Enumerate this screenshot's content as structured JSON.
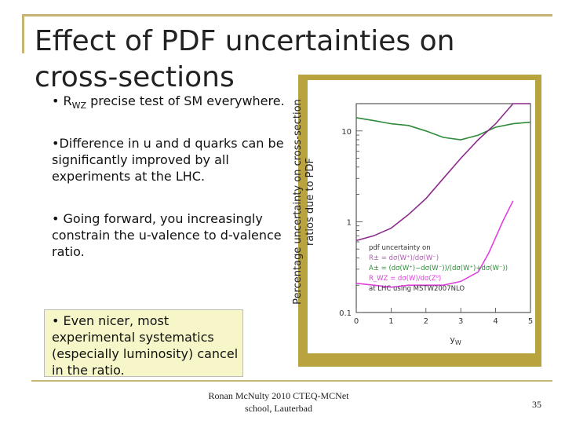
{
  "slide": {
    "title": "Effect of PDF uncertainties on cross-sections",
    "bullets": {
      "b1_pre": "• R",
      "b1_sub": "WZ",
      "b1_post": " precise test of SM everywhere.",
      "b2": "•Difference in u and d quarks can be significantly improved by all experiments at the LHC.",
      "b3": "• Going forward, you increasingly constrain the u-valence to d-valence ratio.",
      "b4": "• Even nicer, most experimental systematics (especially luminosity) cancel in the ratio."
    },
    "figure_ylabel": "Percentage uncertainty on cross-section ratios due to PDF",
    "footer": "Ronan McNulty 2010 CTEQ-MCNet school, Lauterbad",
    "page_number": "35"
  },
  "chart_data": {
    "type": "line",
    "xlabel": "y_W",
    "ylabel": "",
    "y_scale": "log",
    "xlim": [
      0,
      5
    ],
    "ylim": [
      0.1,
      20
    ],
    "x_ticks": [
      "0",
      "1",
      "2",
      "3",
      "4",
      "5"
    ],
    "y_ticks": [
      "0.1",
      "1",
      "10"
    ],
    "legend_lines": [
      "pdf uncertainty on",
      "R± = dσ(W⁺)/dσ(W⁻)",
      "A± = (dσ(W⁺)−dσ(W⁻))/(dσ(W⁺)+dσ(W⁻))",
      "R_WZ = dσ(W)/dσ(Z⁰)",
      "at LHC using MSTW2007NLO"
    ],
    "series": [
      {
        "color": "#2e8b3a",
        "x": [
          0,
          0.5,
          1,
          1.5,
          2,
          2.5,
          3,
          3.5,
          4,
          4.5,
          5
        ],
        "y": [
          14,
          13,
          12,
          11.5,
          10,
          8.5,
          8,
          9,
          11,
          12,
          12.5
        ]
      },
      {
        "color": "#8b2a8b",
        "x": [
          0,
          0.5,
          1,
          1.5,
          2,
          2.5,
          3,
          3.5,
          4,
          4.5,
          5
        ],
        "y": [
          0.62,
          0.7,
          0.85,
          1.2,
          1.8,
          3,
          5,
          8,
          12,
          20,
          25
        ]
      },
      {
        "color": "#e040e0",
        "x": [
          0,
          0.5,
          1,
          1.5,
          2,
          2.5,
          3,
          3.5,
          3.8,
          4.2,
          4.5
        ],
        "y": [
          0.21,
          0.2,
          0.19,
          0.2,
          0.2,
          0.2,
          0.22,
          0.28,
          0.45,
          1.0,
          1.7
        ]
      }
    ]
  }
}
